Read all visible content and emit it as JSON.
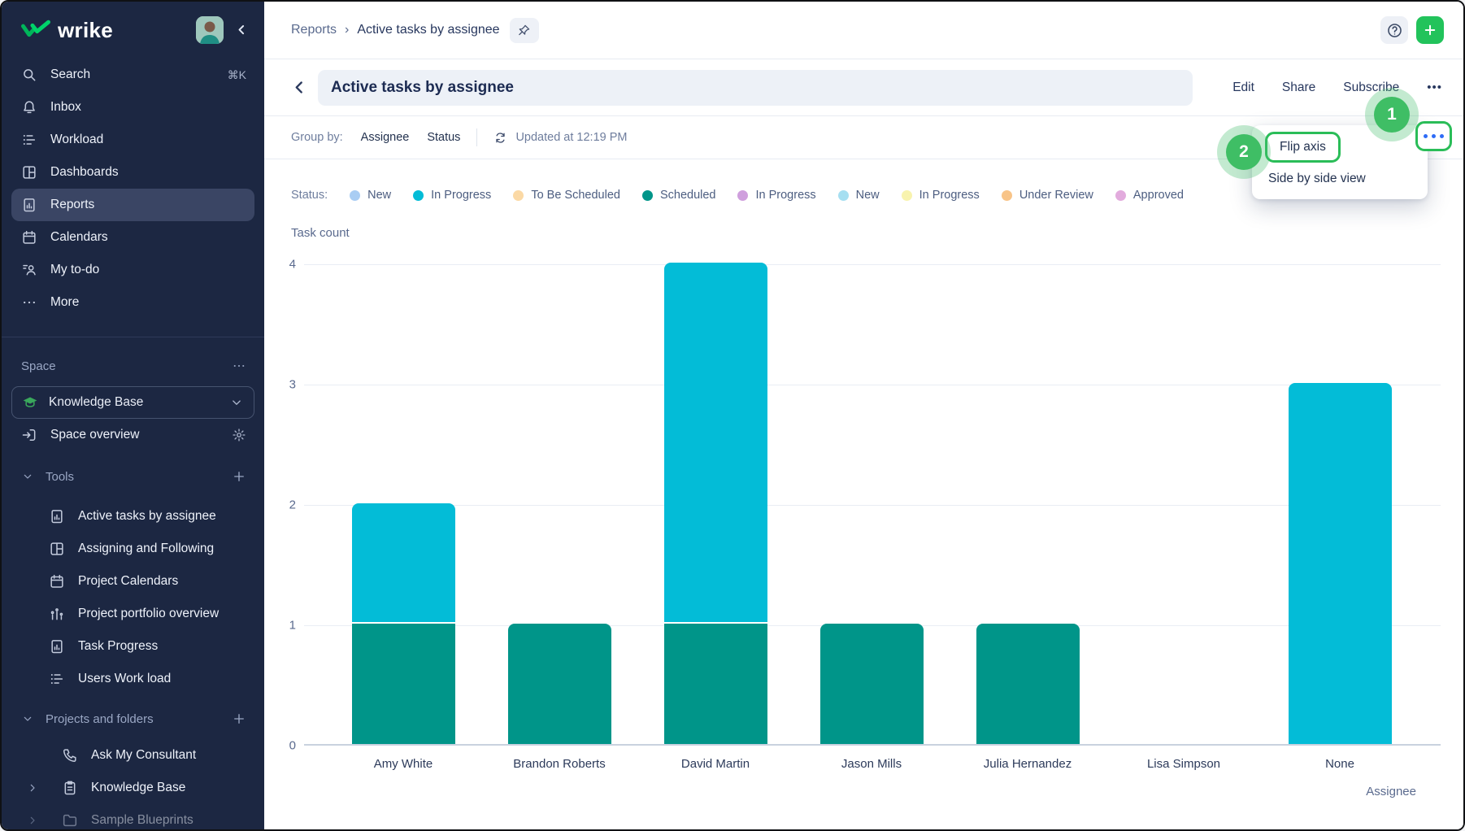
{
  "app": {
    "logo_text": "wrike",
    "accent_green": "#22c35b"
  },
  "sidebar": {
    "nav": [
      {
        "label": "Search",
        "icon": "search",
        "shortcut": "⌘K",
        "selected": false
      },
      {
        "label": "Inbox",
        "icon": "bell",
        "selected": false
      },
      {
        "label": "Workload",
        "icon": "workload",
        "selected": false
      },
      {
        "label": "Dashboards",
        "icon": "dashboards",
        "selected": false
      },
      {
        "label": "Reports",
        "icon": "report",
        "selected": true
      },
      {
        "label": "Calendars",
        "icon": "calendar",
        "selected": false
      },
      {
        "label": "My to-do",
        "icon": "todo",
        "selected": false
      },
      {
        "label": "More",
        "icon": "dots",
        "selected": false
      }
    ],
    "space": {
      "header": "Space",
      "header_more_icon": "dots",
      "selector": "Knowledge Base",
      "selector_icon": "cap"
    },
    "overview_label": "Space overview",
    "tools": {
      "header": "Tools",
      "items": [
        {
          "label": "Active tasks by assignee",
          "icon": "report"
        },
        {
          "label": "Assigning and Following",
          "icon": "dashboards"
        },
        {
          "label": "Project Calendars",
          "icon": "calendar"
        },
        {
          "label": "Project portfolio overview",
          "icon": "podium"
        },
        {
          "label": "Task Progress",
          "icon": "report"
        },
        {
          "label": "Users Work load",
          "icon": "workload"
        }
      ]
    },
    "projects": {
      "header": "Projects and folders",
      "items": [
        {
          "label": "Ask My Consultant",
          "icon": "phone",
          "chevron": false,
          "faded": false
        },
        {
          "label": "Knowledge Base",
          "icon": "clipboard",
          "chevron": true,
          "faded": false
        },
        {
          "label": "Sample Blueprints",
          "icon": "folder",
          "chevron": true,
          "faded": true
        }
      ]
    }
  },
  "topbar": {
    "breadcrumb": [
      "Reports",
      "Active tasks by assignee"
    ],
    "sep": "›"
  },
  "titlebar": {
    "title": "Active tasks by assignee",
    "actions": [
      "Edit",
      "Share",
      "Subscribe"
    ]
  },
  "toolbar": {
    "group_by_label": "Group by:",
    "options": [
      "Assignee",
      "Status"
    ],
    "updated": "Updated at 12:19 PM"
  },
  "legend": {
    "label": "Status:",
    "items": [
      {
        "label": "New",
        "color": "#a9cdf3"
      },
      {
        "label": "In Progress",
        "color": "#03bcd7"
      },
      {
        "label": "To Be Scheduled",
        "color": "#fbd9a5"
      },
      {
        "label": "Scheduled",
        "color": "#009589"
      },
      {
        "label": "In Progress",
        "color": "#cf9fdd"
      },
      {
        "label": "New",
        "color": "#a6dff1"
      },
      {
        "label": "In Progress",
        "color": "#f8f3ae"
      },
      {
        "label": "Under Review",
        "color": "#f8c488"
      },
      {
        "label": "Approved",
        "color": "#e2abdd"
      }
    ]
  },
  "chart_data": {
    "type": "bar",
    "stacked": true,
    "title": "Active tasks by assignee",
    "categories": [
      "Amy White",
      "Brandon Roberts",
      "David Martin",
      "Jason Mills",
      "Julia Hernandez",
      "Lisa Simpson",
      "None"
    ],
    "series": [
      {
        "name": "Scheduled",
        "color": "#009589",
        "values": [
          1,
          1,
          1,
          1,
          1,
          0,
          0
        ]
      },
      {
        "name": "In Progress",
        "color": "#03bcd7",
        "values": [
          1,
          0,
          3,
          0,
          0,
          0,
          3
        ]
      }
    ],
    "ylabel": "Task count",
    "xlabel": "Assignee",
    "ylim": [
      0,
      4
    ],
    "yticks": [
      0,
      1,
      2,
      3,
      4
    ],
    "grid": true,
    "legend_position": "top"
  },
  "menu": {
    "items": [
      "Flip axis",
      "Side by side view"
    ]
  },
  "annotations": {
    "step1": "1",
    "step2": "2"
  }
}
